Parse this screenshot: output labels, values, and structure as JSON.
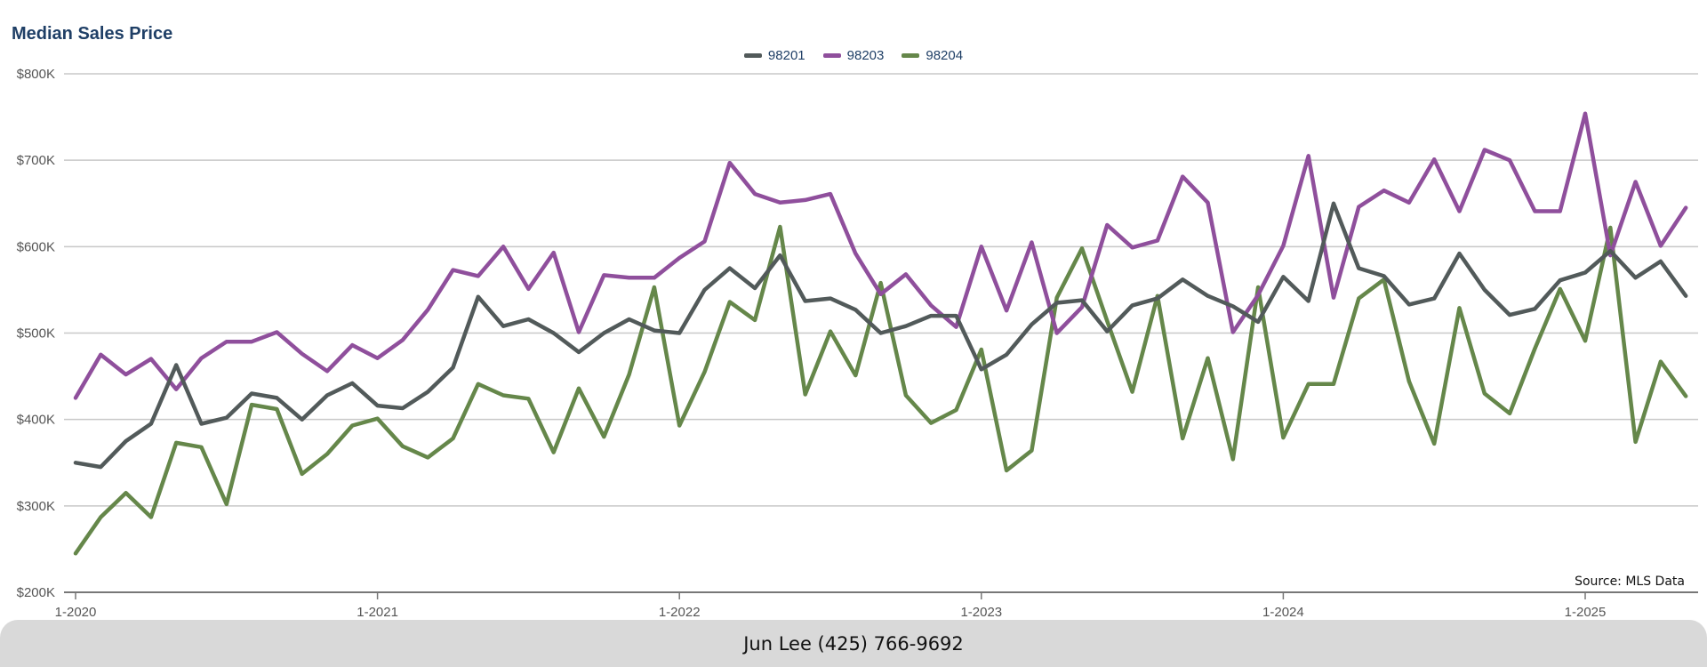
{
  "chart_data": {
    "type": "line",
    "title": "Median Sales Price",
    "xlabel": "",
    "ylabel": "",
    "ylim": [
      200000,
      800000
    ],
    "y_ticks": [
      200000,
      300000,
      400000,
      500000,
      600000,
      700000,
      800000
    ],
    "y_tick_labels": [
      "$200K",
      "$300K",
      "$400K",
      "$500K",
      "$600K",
      "$700K",
      "$800K"
    ],
    "x_tick_labels": [
      "1-2020",
      "1-2021",
      "1-2022",
      "1-2023",
      "1-2024",
      "1-2025"
    ],
    "x_tick_indices": [
      0,
      12,
      24,
      36,
      48,
      60
    ],
    "grid": true,
    "legend_position": "top-center",
    "series": [
      {
        "name": "98201",
        "color": "#525a5a",
        "values": [
          350000,
          345000,
          375000,
          395000,
          463000,
          395000,
          402000,
          430000,
          425000,
          400000,
          428000,
          442000,
          416000,
          413000,
          432000,
          460000,
          542000,
          508000,
          516000,
          500000,
          478000,
          500000,
          516000,
          503000,
          500000,
          550000,
          575000,
          552000,
          590000,
          537000,
          540000,
          527000,
          500000,
          508000,
          520000,
          520000,
          458000,
          475000,
          510000,
          535000,
          538000,
          502000,
          532000,
          540000,
          562000,
          543000,
          531000,
          513000,
          565000,
          537000,
          650000,
          575000,
          566000,
          533000,
          540000,
          592000,
          550000,
          521000,
          528000,
          561000,
          570000,
          595000,
          564000,
          583000,
          543000
        ]
      },
      {
        "name": "98203",
        "color": "#8f4f9c",
        "values": [
          425000,
          475000,
          452000,
          470000,
          435000,
          471000,
          490000,
          490000,
          501000,
          476000,
          456000,
          486000,
          471000,
          492000,
          527000,
          573000,
          566000,
          600000,
          551000,
          593000,
          501000,
          567000,
          564000,
          564000,
          587000,
          606000,
          697000,
          661000,
          651000,
          654000,
          661000,
          592000,
          545000,
          568000,
          532000,
          507000,
          600000,
          526000,
          605000,
          500000,
          530000,
          625000,
          599000,
          607000,
          681000,
          651000,
          501000,
          544000,
          601000,
          705000,
          541000,
          646000,
          665000,
          651000,
          701000,
          641000,
          712000,
          700000,
          641000,
          641000,
          754000,
          590000,
          675000,
          601000,
          645000
        ]
      },
      {
        "name": "98204",
        "color": "#65874a",
        "values": [
          245000,
          287000,
          315000,
          287000,
          373000,
          368000,
          302000,
          417000,
          412000,
          337000,
          360000,
          393000,
          401000,
          369000,
          356000,
          378000,
          441000,
          428000,
          424000,
          362000,
          436000,
          380000,
          452000,
          553000,
          393000,
          455000,
          536000,
          515000,
          623000,
          429000,
          502000,
          451000,
          558000,
          428000,
          396000,
          411000,
          481000,
          341000,
          364000,
          541000,
          598000,
          514000,
          432000,
          543000,
          378000,
          471000,
          354000,
          553000,
          379000,
          441000,
          441000,
          540000,
          562000,
          444000,
          372000,
          529000,
          430000,
          407000,
          482000,
          551000,
          491000,
          622000,
          374000,
          467000,
          427000
        ]
      }
    ],
    "source": "Source: MLS Data"
  },
  "footer": {
    "text": "Jun Lee (425) 766-9692"
  }
}
